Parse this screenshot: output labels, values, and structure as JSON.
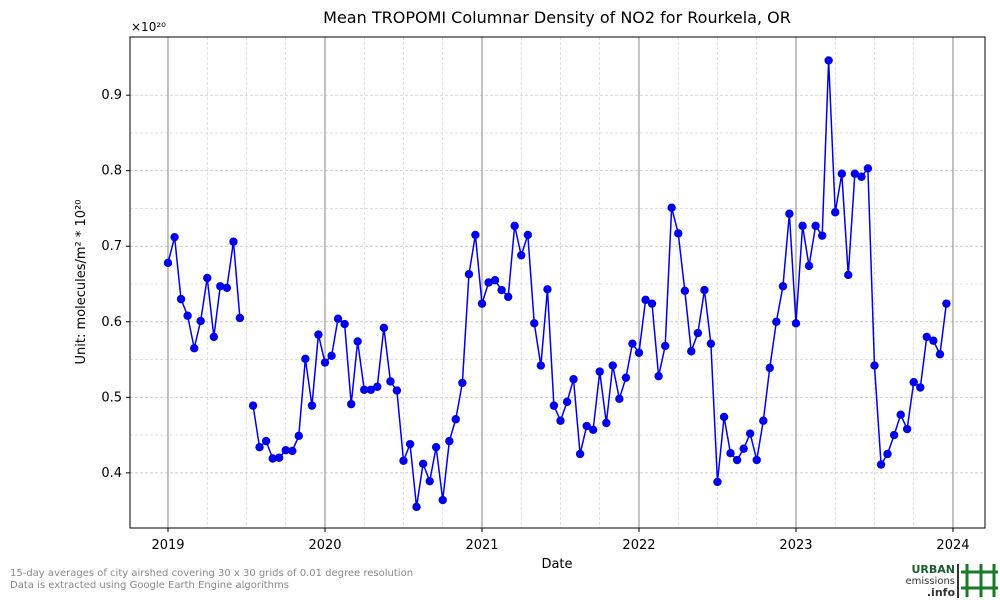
{
  "chart_data": {
    "type": "line",
    "title": "Mean TROPOMI Columnar Density of NO2 for Rourkela, OR",
    "x_label": "Date",
    "y_label": "Unit: molecules/m² * 10²⁰",
    "y_offset_label": "×10²⁰",
    "xlim": [
      2018.758,
      2024.204
    ],
    "ylim": [
      0.327,
      0.977
    ],
    "xticks": [
      2019,
      2020,
      2021,
      2022,
      2023,
      2024
    ],
    "yticks": [
      0.4,
      0.5,
      0.6,
      0.7,
      0.8,
      0.9
    ],
    "grid": true,
    "x": [
      2019,
      2019.042,
      2019.083,
      2019.125,
      2019.167,
      2019.208,
      2019.25,
      2019.292,
      2019.333,
      2019.375,
      2019.417,
      2019.458,
      2019.5,
      2019.542,
      2019.583,
      2019.625,
      2019.667,
      2019.708,
      2019.75,
      2019.792,
      2019.833,
      2019.875,
      2019.917,
      2019.958,
      2020,
      2020.042,
      2020.083,
      2020.125,
      2020.167,
      2020.208,
      2020.25,
      2020.292,
      2020.333,
      2020.375,
      2020.417,
      2020.458,
      2020.5,
      2020.542,
      2020.583,
      2020.625,
      2020.667,
      2020.708,
      2020.75,
      2020.792,
      2020.833,
      2020.875,
      2020.917,
      2020.958,
      2021,
      2021.042,
      2021.083,
      2021.125,
      2021.167,
      2021.208,
      2021.25,
      2021.292,
      2021.333,
      2021.375,
      2021.417,
      2021.458,
      2021.5,
      2021.542,
      2021.583,
      2021.625,
      2021.667,
      2021.708,
      2021.75,
      2021.792,
      2021.833,
      2021.875,
      2021.917,
      2021.958,
      2022,
      2022.042,
      2022.083,
      2022.125,
      2022.167,
      2022.208,
      2022.25,
      2022.292,
      2022.333,
      2022.375,
      2022.417,
      2022.458,
      2022.5,
      2022.542,
      2022.583,
      2022.625,
      2022.667,
      2022.708,
      2022.75,
      2022.792,
      2022.833,
      2022.875,
      2022.917,
      2022.958,
      2023,
      2023.042,
      2023.083,
      2023.125,
      2023.167,
      2023.208,
      2023.25,
      2023.292,
      2023.333,
      2023.375,
      2023.417,
      2023.458,
      2023.5,
      2023.542,
      2023.583,
      2023.625,
      2023.667,
      2023.708,
      2023.75,
      2023.792,
      2023.833,
      2023.875,
      2023.917,
      2023.958
    ],
    "series": [
      {
        "color": "#0000ee",
        "values": [
          0.678,
          0.712,
          0.63,
          0.608,
          0.565,
          0.601,
          0.658,
          0.58,
          0.647,
          0.645,
          0.706,
          0.605,
          null,
          0.489,
          0.434,
          0.442,
          0.419,
          0.42,
          0.43,
          0.429,
          0.449,
          0.551,
          0.489,
          0.583,
          0.546,
          0.555,
          0.604,
          0.597,
          0.491,
          0.574,
          0.51,
          0.51,
          0.514,
          0.592,
          0.521,
          0.509,
          0.416,
          0.438,
          0.355,
          0.412,
          0.389,
          0.434,
          0.364,
          0.442,
          0.471,
          0.519,
          0.663,
          0.715,
          0.624,
          0.652,
          0.655,
          0.642,
          0.633,
          0.727,
          0.688,
          0.715,
          0.598,
          0.542,
          0.643,
          0.489,
          0.469,
          0.494,
          0.524,
          0.425,
          0.462,
          0.457,
          0.534,
          0.466,
          0.542,
          0.498,
          0.526,
          0.571,
          0.559,
          0.629,
          0.624,
          0.528,
          0.568,
          0.751,
          0.717,
          0.641,
          0.561,
          0.585,
          0.642,
          0.571,
          0.388,
          0.474,
          0.426,
          0.417,
          0.432,
          0.452,
          0.417,
          0.469,
          0.539,
          0.6,
          0.647,
          0.743,
          0.598,
          0.727,
          0.674,
          0.727,
          0.714,
          0.946,
          0.745,
          0.796,
          0.662,
          0.796,
          0.792,
          0.803,
          0.542,
          0.411,
          0.425,
          0.45,
          0.477,
          0.458,
          0.52,
          0.513,
          0.58,
          0.575,
          0.557,
          0.624
        ]
      }
    ]
  },
  "footnote": [
    "15-day averages of city airshed covering 30 x 30 grids of 0.01 degree resolution",
    "Data is extracted using Google Earth Engine algorithms"
  ],
  "logo": {
    "line1": "URBAN",
    "line2": "emissions",
    "line3": ".info"
  }
}
